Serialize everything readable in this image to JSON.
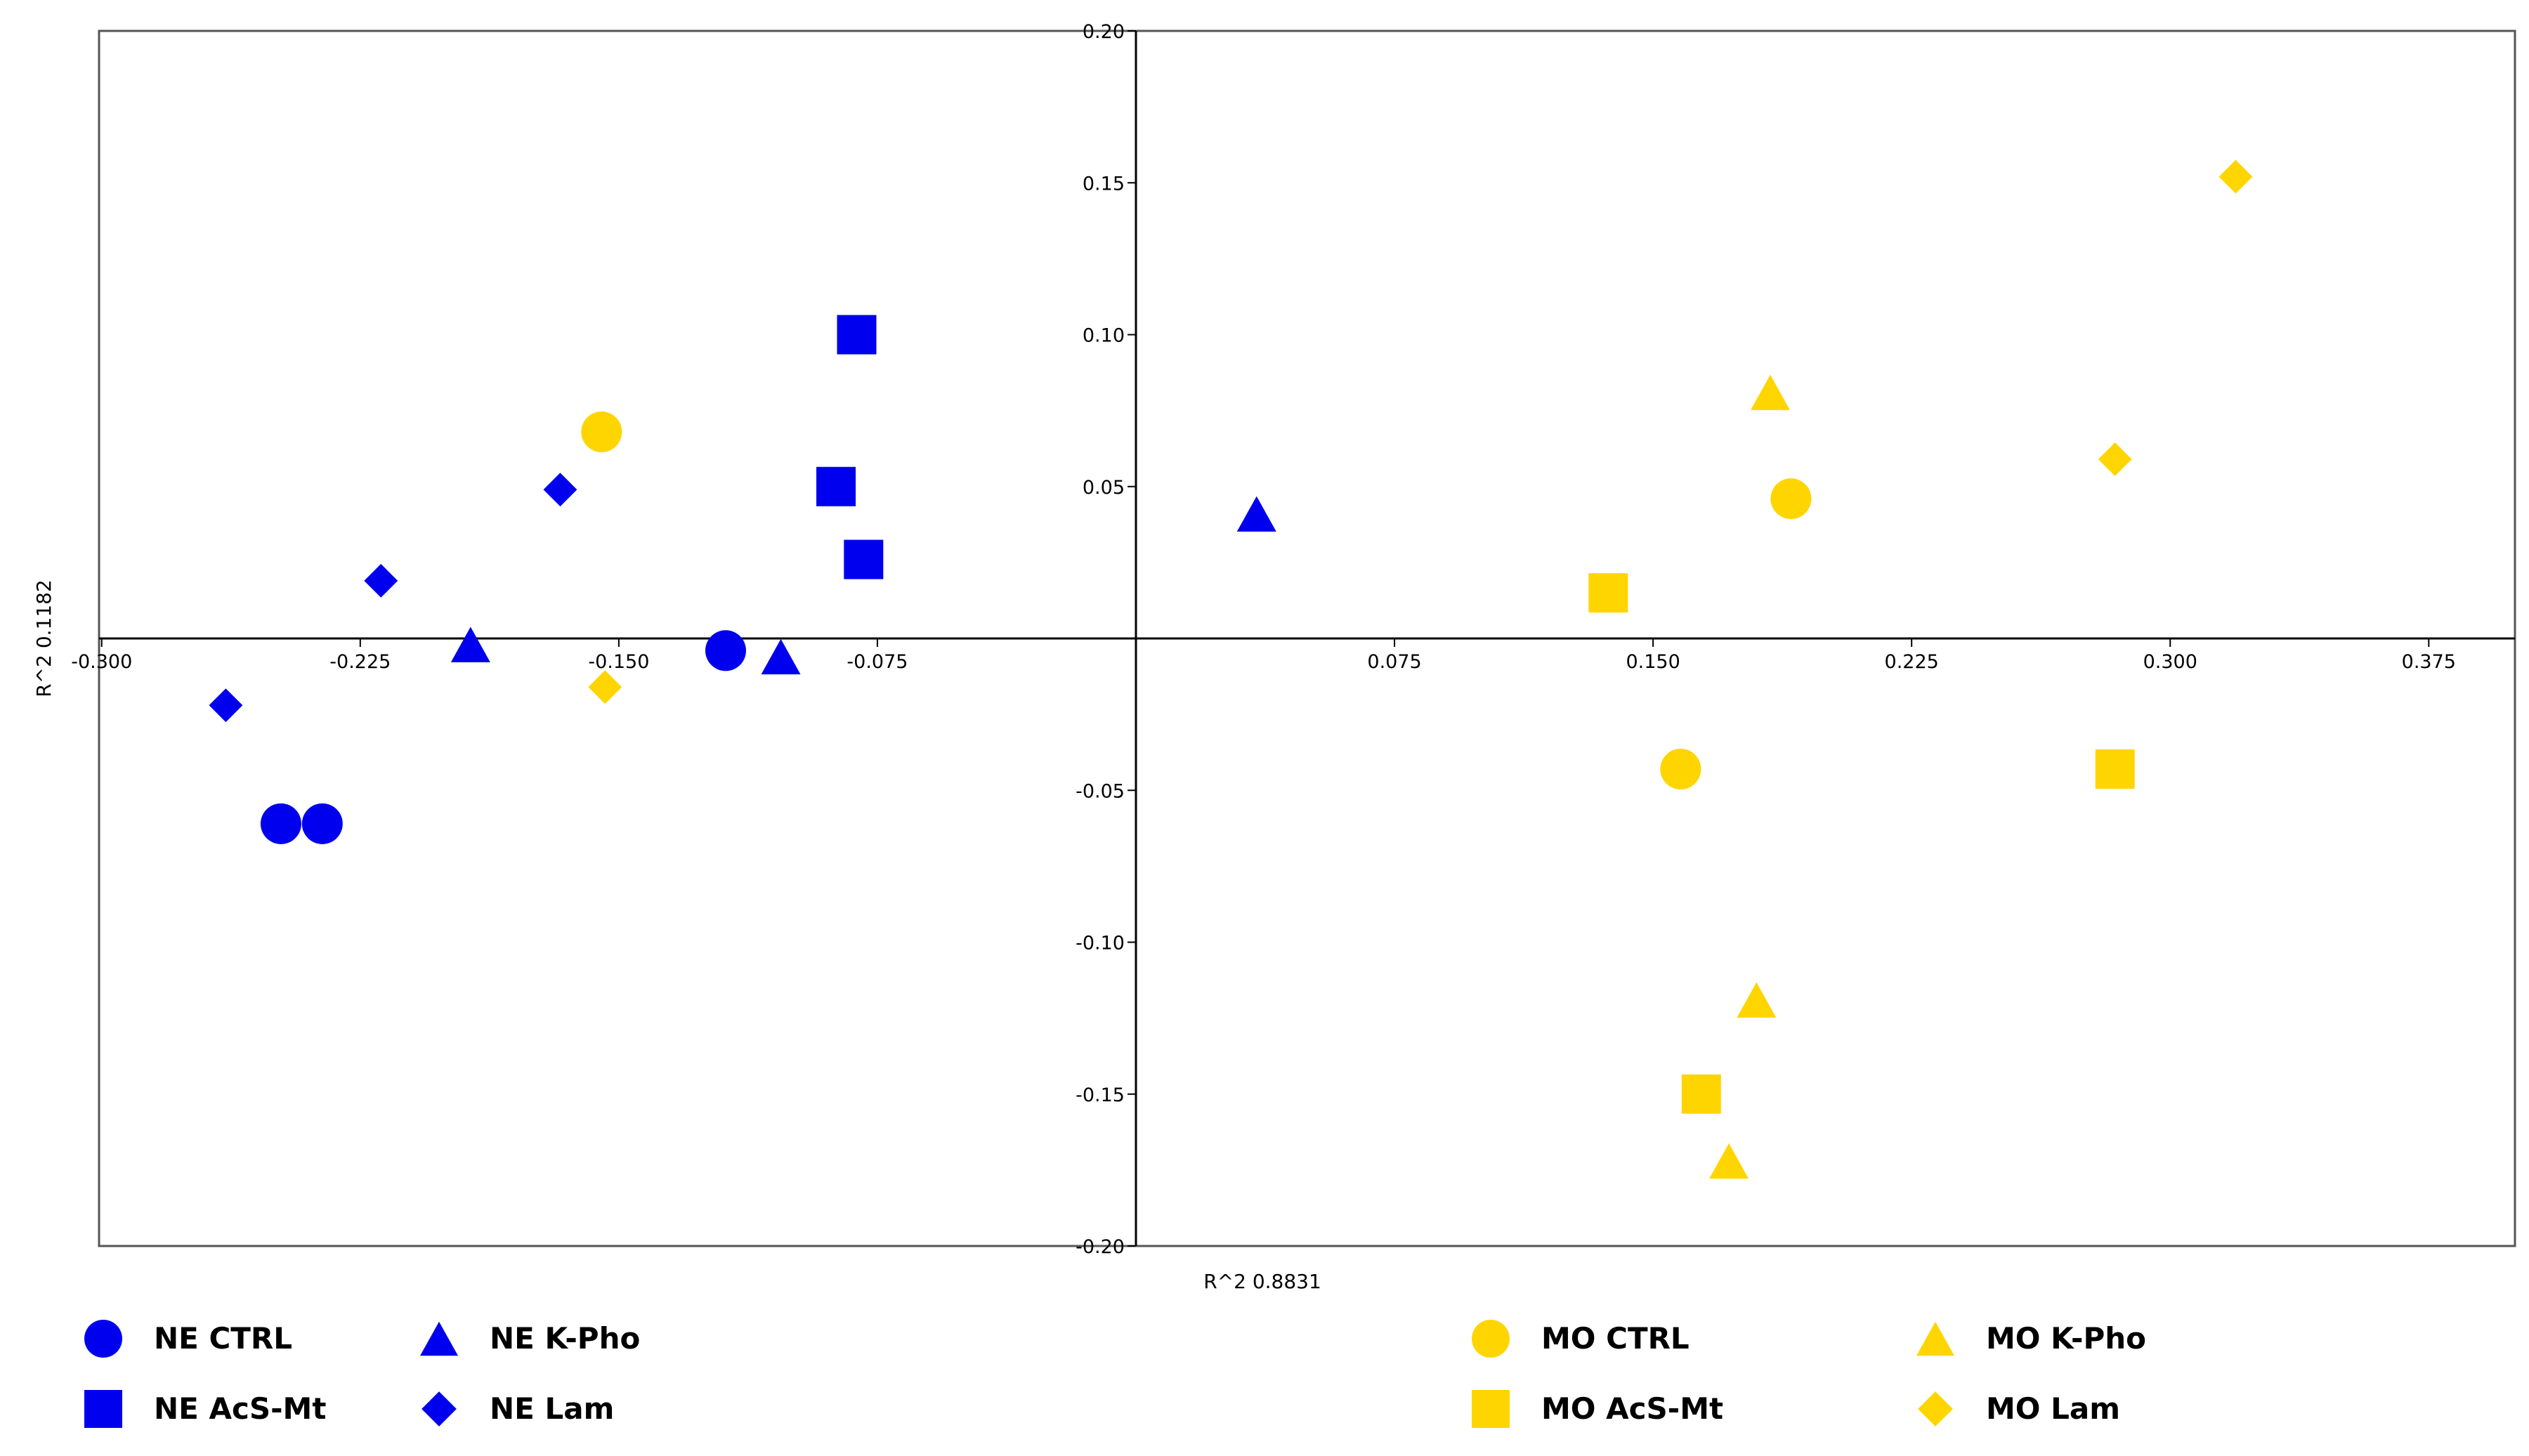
{
  "chart_data": {
    "type": "scatter",
    "xlabel": "R^2 0.8831",
    "ylabel": "R^2 0.1182",
    "xlim": [
      -0.3,
      0.4
    ],
    "ylim": [
      -0.2,
      0.2
    ],
    "x_ticks": [
      -0.3,
      -0.225,
      -0.15,
      -0.075,
      0.075,
      0.15,
      0.225,
      0.3,
      0.375
    ],
    "x_tick_labels": [
      "-0.300",
      "-0.225",
      "-0.150",
      "-0.075",
      "0.075",
      "0.150",
      "0.225",
      "0.300",
      "0.375"
    ],
    "y_ticks": [
      0.2,
      0.15,
      0.1,
      0.05,
      -0.05,
      -0.1,
      -0.15,
      -0.2
    ],
    "y_tick_labels": [
      "0.20",
      "0.15",
      "0.10",
      "0.05",
      "-0.05",
      "-0.10",
      "-0.15",
      "-0.20"
    ],
    "grid": false,
    "legend_position": "bottom",
    "colors": {
      "NE": "#0000ee",
      "MO": "#ffd500"
    },
    "series": [
      {
        "name": "NE CTRL",
        "group": "NE",
        "marker": "circle",
        "points": [
          [
            -0.248,
            -0.061
          ],
          [
            -0.236,
            -0.061
          ],
          [
            -0.119,
            -0.004
          ]
        ]
      },
      {
        "name": "NE AcS-Mt",
        "group": "NE",
        "marker": "square",
        "points": [
          [
            -0.081,
            0.1
          ],
          [
            -0.087,
            0.05
          ],
          [
            -0.079,
            0.026
          ]
        ]
      },
      {
        "name": "NE K-Pho",
        "group": "NE",
        "marker": "triangle",
        "points": [
          [
            -0.193,
            -0.002
          ],
          [
            -0.103,
            -0.006
          ],
          [
            0.035,
            0.041
          ]
        ]
      },
      {
        "name": "NE Lam",
        "group": "NE",
        "marker": "diamond",
        "points": [
          [
            -0.167,
            0.049
          ],
          [
            -0.219,
            0.019
          ],
          [
            -0.264,
            -0.022
          ]
        ]
      },
      {
        "name": "MO CTRL",
        "group": "MO",
        "marker": "circle",
        "points": [
          [
            -0.155,
            0.068
          ],
          [
            0.19,
            0.046
          ],
          [
            0.158,
            -0.043
          ]
        ]
      },
      {
        "name": "MO AcS-Mt",
        "group": "MO",
        "marker": "square",
        "points": [
          [
            0.137,
            0.015
          ],
          [
            0.284,
            -0.043
          ],
          [
            0.164,
            -0.15
          ]
        ]
      },
      {
        "name": "MO K-Pho",
        "group": "MO",
        "marker": "triangle",
        "points": [
          [
            0.184,
            0.081
          ],
          [
            0.18,
            -0.119
          ],
          [
            0.172,
            -0.172
          ]
        ]
      },
      {
        "name": "MO Lam",
        "group": "MO",
        "marker": "diamond",
        "points": [
          [
            -0.154,
            -0.016
          ],
          [
            0.284,
            0.059
          ],
          [
            0.319,
            0.152
          ]
        ]
      }
    ]
  }
}
